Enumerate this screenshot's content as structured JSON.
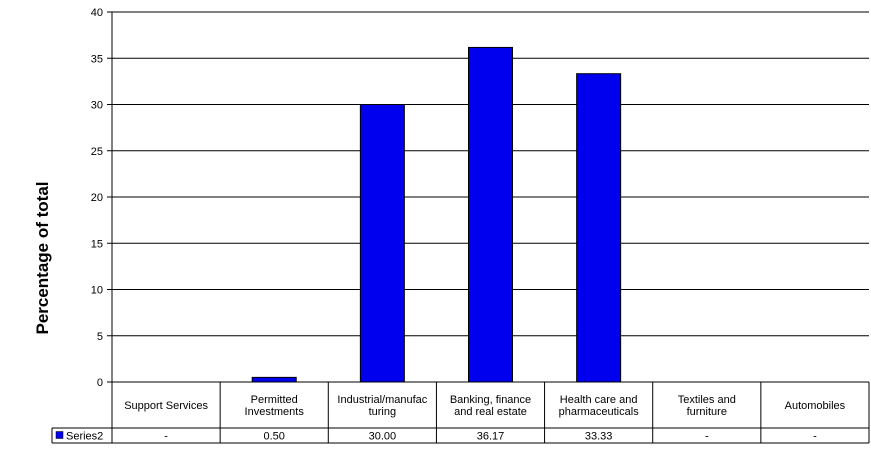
{
  "chart_data": {
    "type": "bar",
    "ylabel": "Percentage of total",
    "ylim": [
      0,
      40
    ],
    "yticks": [
      "0",
      "5",
      "10",
      "15",
      "20",
      "25",
      "30",
      "35",
      "40"
    ],
    "categories": [
      [
        "Support Services"
      ],
      [
        "Permitted",
        "Investments"
      ],
      [
        "Industrial/manufac",
        "turing"
      ],
      [
        "Banking, finance",
        "and real estate"
      ],
      [
        "Health care and",
        "pharmaceuticals"
      ],
      [
        "Textiles and",
        "furniture"
      ],
      [
        "Automobiles"
      ]
    ],
    "series": [
      {
        "name": "Series2",
        "color": "#0000ee",
        "values": [
          0,
          0.5,
          30.0,
          36.17,
          33.33,
          0,
          0
        ],
        "table_values": [
          "-",
          "0.50",
          "30.00",
          "36.17",
          "33.33",
          "-",
          "-"
        ]
      }
    ],
    "grid": true,
    "data_table": true
  }
}
